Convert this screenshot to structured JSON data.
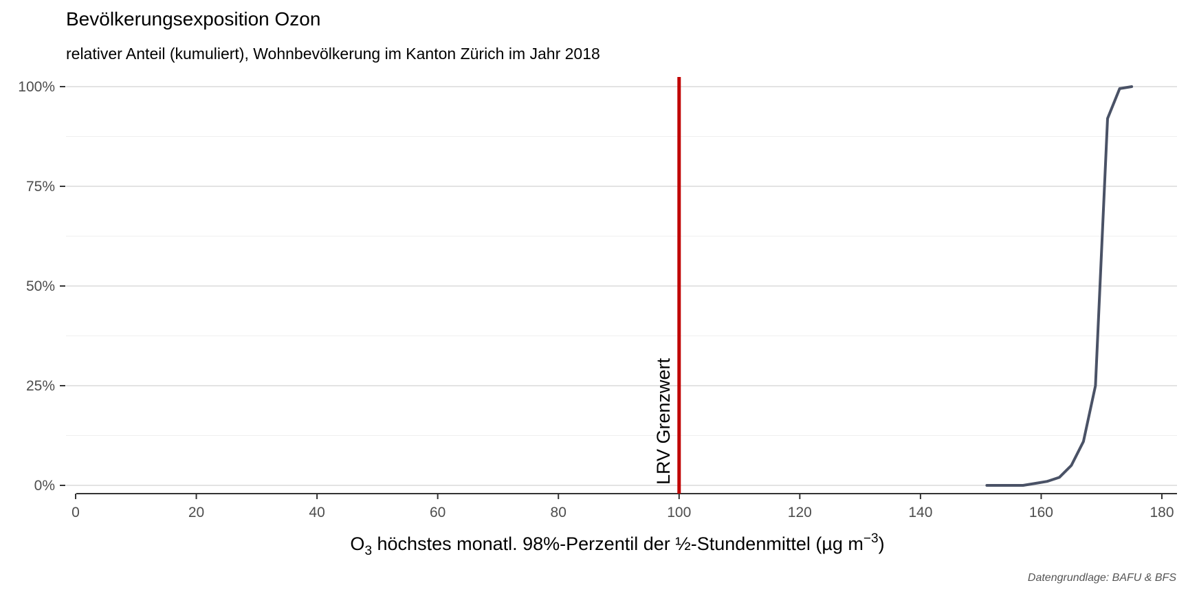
{
  "title": "Bevölkerungsexposition Ozon",
  "subtitle": "relativer Anteil (kumuliert), Wohnbevölkerung im Kanton Zürich im Jahr 2018",
  "caption": "Datengrundlage: BAFU & BFS",
  "chart_data": {
    "type": "line",
    "title": "Bevölkerungsexposition Ozon",
    "subtitle": "relativer Anteil (kumuliert), Wohnbevölkerung im Kanton Zürich im Jahr 2018",
    "xlabel": {
      "prefix": "O",
      "subscript": "3",
      "main": " höchstes monatl. 98%-Perzentil der ½-Stundenmittel (µg m",
      "superscript": "−3",
      "suffix": ")"
    },
    "ylabel": "",
    "xlim": [
      0,
      180
    ],
    "ylim": [
      0,
      1
    ],
    "x_ticks": [
      0,
      20,
      40,
      60,
      80,
      100,
      120,
      140,
      160,
      180
    ],
    "x_tick_labels": [
      "0",
      "20",
      "40",
      "60",
      "80",
      "100",
      "120",
      "140",
      "160",
      "180"
    ],
    "y_ticks": [
      0,
      0.25,
      0.5,
      0.75,
      1
    ],
    "y_tick_labels": [
      "0%",
      "25%",
      "50%",
      "75%",
      "100%"
    ],
    "grid": "horizontal",
    "legend": "none",
    "series": [
      {
        "color": "#4a5266",
        "x": [
          151,
          157,
          159,
          161,
          163,
          165,
          167,
          169,
          171,
          173,
          175
        ],
        "y": [
          0.0,
          0.0,
          0.005,
          0.01,
          0.02,
          0.05,
          0.11,
          0.25,
          0.92,
          0.995,
          1.0
        ]
      }
    ],
    "reference_line": {
      "x": 100,
      "label": "LRV Grenzwert",
      "color": "#c00000"
    }
  }
}
